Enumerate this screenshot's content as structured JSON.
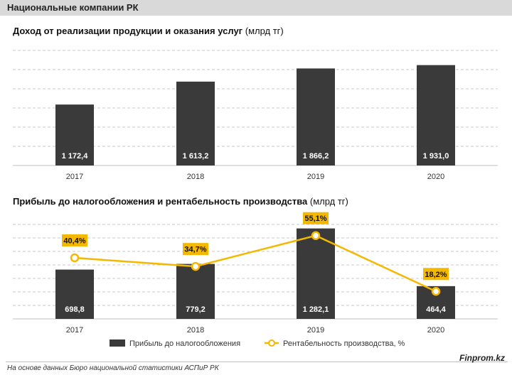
{
  "header": {
    "title": "Национальные компании РК"
  },
  "footer": {
    "source": "На основе данных Бюро национальной статистики АСПиР РК",
    "brand": "Finprom.kz"
  },
  "colors": {
    "bar": "#3a3a3a",
    "line": "#f5b800",
    "label_bg": "#f5b800",
    "grid": "#c8c8c8",
    "header_bg": "#d9d9d9"
  },
  "chart_data": [
    {
      "type": "bar",
      "title": "Доход от реализации продукции и оказания услуг",
      "unit": "(млрд тг)",
      "categories": [
        "2017",
        "2018",
        "2019",
        "2020"
      ],
      "values": [
        1172.4,
        1613.2,
        1866.2,
        1931.0
      ],
      "value_labels": [
        "1 172,4",
        "1 613,2",
        "1 866,2",
        "1 931,0"
      ],
      "ylim": [
        0,
        2500
      ],
      "grid": true,
      "legend": "none"
    },
    {
      "type": "bar+line",
      "title": "Прибыль до налогообложения и рентабельность производства",
      "unit": "(млрд тг)",
      "categories": [
        "2017",
        "2018",
        "2019",
        "2020"
      ],
      "series": [
        {
          "name": "Прибыль до налогообложения",
          "type": "bar",
          "values": [
            698.8,
            779.2,
            1282.1,
            464.4
          ],
          "value_labels": [
            "698,8",
            "779,2",
            "1 282,1",
            "464,4"
          ]
        },
        {
          "name": "Рентабельность производства,  %",
          "type": "line",
          "values": [
            40.4,
            34.7,
            55.1,
            18.2
          ],
          "value_labels": [
            "40,4%",
            "34,7%",
            "55,1%",
            "18,2%"
          ]
        }
      ],
      "ylim": [
        0,
        1500
      ],
      "y2lim": [
        0,
        70
      ],
      "grid": true,
      "legend": "bottom"
    }
  ]
}
